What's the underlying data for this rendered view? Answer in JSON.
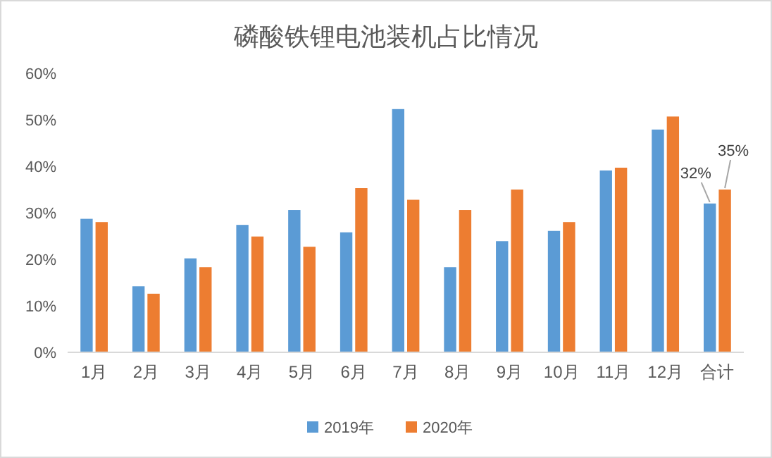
{
  "chart_data": {
    "type": "bar",
    "title": "磷酸铁锂电池装机占比情况",
    "categories": [
      "1月",
      "2月",
      "3月",
      "4月",
      "5月",
      "6月",
      "7月",
      "8月",
      "9月",
      "10月",
      "11月",
      "12月",
      "合计"
    ],
    "series": [
      {
        "name": "2019年",
        "color": "#5b9bd5",
        "values": [
          28.7,
          14.2,
          20.2,
          27.4,
          30.6,
          25.8,
          52.3,
          18.3,
          23.9,
          26.1,
          39.1,
          47.9,
          32
        ],
        "value_labels": [
          null,
          null,
          null,
          null,
          null,
          null,
          null,
          null,
          null,
          null,
          null,
          null,
          "32%"
        ]
      },
      {
        "name": "2020年",
        "color": "#ed7d31",
        "values": [
          28.0,
          12.6,
          18.3,
          24.9,
          22.7,
          35.3,
          32.8,
          30.6,
          35.0,
          28.0,
          39.7,
          50.7,
          35
        ],
        "value_labels": [
          null,
          null,
          null,
          null,
          null,
          null,
          null,
          null,
          null,
          null,
          null,
          null,
          "35%"
        ]
      }
    ],
    "ylim": [
      0,
      60
    ],
    "yticks": [
      {
        "value": 0,
        "label": "0%"
      },
      {
        "value": 10,
        "label": "10%"
      },
      {
        "value": 20,
        "label": "20%"
      },
      {
        "value": 30,
        "label": "30%"
      },
      {
        "value": 40,
        "label": "40%"
      },
      {
        "value": 50,
        "label": "50%"
      },
      {
        "value": 60,
        "label": "60%"
      }
    ],
    "grid": false,
    "legend": "bottom"
  }
}
